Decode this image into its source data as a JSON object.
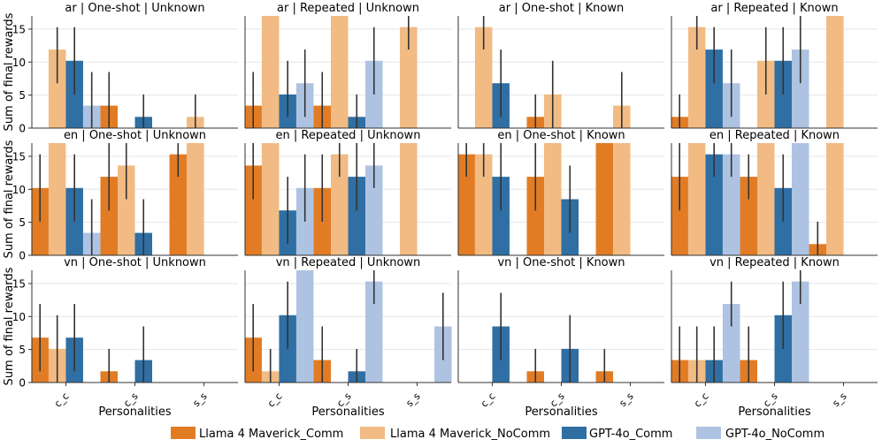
{
  "chart_data": {
    "type": "bar",
    "layout": "facet-grid 3x4",
    "categories": [
      "c_c",
      "c_s",
      "s_s"
    ],
    "xlabel": "Personalities",
    "ylabel": "Sum of final rewards",
    "ylim": [
      0,
      17
    ],
    "yticks": [
      0,
      5,
      10,
      15
    ],
    "grid": true,
    "legend_position": "bottom-center",
    "series_names": [
      "Llama 4 Maverick_Comm",
      "Llama 4 Maverick_NoComm",
      "GPT-4o_Comm",
      "GPT-4o_NoComm"
    ],
    "series_colors": [
      "#e17c25",
      "#f1bb83",
      "#2f6fa3",
      "#aec3e2"
    ],
    "error_bar_color": "#333333",
    "panels": [
      {
        "title": "ar | One-shot | Unknown",
        "series": [
          {
            "name": "Llama 4 Maverick_Comm",
            "values": [
              null,
              3.4,
              null
            ],
            "err_low": [
              null,
              0,
              null
            ],
            "err_high": [
              null,
              8.5,
              null
            ]
          },
          {
            "name": "Llama 4 Maverick_NoComm",
            "values": [
              11.9,
              null,
              1.7
            ],
            "err_low": [
              6.8,
              null,
              0
            ],
            "err_high": [
              15.3,
              null,
              5.1
            ]
          },
          {
            "name": "GPT-4o_Comm",
            "values": [
              10.2,
              1.7,
              null
            ],
            "err_low": [
              5.1,
              0,
              null
            ],
            "err_high": [
              15.3,
              5.1,
              null
            ]
          },
          {
            "name": "GPT-4o_NoComm",
            "values": [
              3.4,
              null,
              null
            ],
            "err_low": [
              0,
              null,
              null
            ],
            "err_high": [
              8.5,
              null,
              null
            ]
          }
        ]
      },
      {
        "title": "ar | Repeated | Unknown",
        "series": [
          {
            "name": "Llama 4 Maverick_Comm",
            "values": [
              3.4,
              3.4,
              null
            ],
            "err_low": [
              0,
              0,
              null
            ],
            "err_high": [
              8.5,
              8.5,
              null
            ]
          },
          {
            "name": "Llama 4 Maverick_NoComm",
            "values": [
              17,
              17,
              15.3
            ],
            "err_low": [
              17,
              17,
              11.9
            ],
            "err_high": [
              17,
              17,
              17
            ]
          },
          {
            "name": "GPT-4o_Comm",
            "values": [
              5.1,
              1.7,
              null
            ],
            "err_low": [
              1.7,
              0,
              null
            ],
            "err_high": [
              10.2,
              5.1,
              null
            ]
          },
          {
            "name": "GPT-4o_NoComm",
            "values": [
              6.8,
              10.2,
              null
            ],
            "err_low": [
              1.7,
              5.1,
              null
            ],
            "err_high": [
              11.9,
              15.3,
              null
            ]
          }
        ]
      },
      {
        "title": "ar | One-shot | Known",
        "series": [
          {
            "name": "Llama 4 Maverick_Comm",
            "values": [
              null,
              1.7,
              null
            ],
            "err_low": [
              null,
              0,
              null
            ],
            "err_high": [
              null,
              5.1,
              null
            ]
          },
          {
            "name": "Llama 4 Maverick_NoComm",
            "values": [
              15.3,
              5.1,
              3.4
            ],
            "err_low": [
              11.9,
              0,
              0
            ],
            "err_high": [
              17,
              10.2,
              8.5
            ]
          },
          {
            "name": "GPT-4o_Comm",
            "values": [
              6.8,
              null,
              null
            ],
            "err_low": [
              1.7,
              null,
              null
            ],
            "err_high": [
              11.9,
              null,
              null
            ]
          },
          {
            "name": "GPT-4o_NoComm",
            "values": [
              null,
              null,
              null
            ],
            "err_low": [
              null,
              null,
              null
            ],
            "err_high": [
              null,
              null,
              null
            ]
          }
        ]
      },
      {
        "title": "ar | Repeated | Known",
        "series": [
          {
            "name": "Llama 4 Maverick_Comm",
            "values": [
              1.7,
              null,
              null
            ],
            "err_low": [
              0,
              null,
              null
            ],
            "err_high": [
              5.1,
              null,
              null
            ]
          },
          {
            "name": "Llama 4 Maverick_NoComm",
            "values": [
              15.3,
              10.2,
              17
            ],
            "err_low": [
              11.9,
              5.1,
              17
            ],
            "err_high": [
              17,
              15.3,
              17
            ]
          },
          {
            "name": "GPT-4o_Comm",
            "values": [
              11.9,
              10.2,
              null
            ],
            "err_low": [
              6.8,
              5.1,
              null
            ],
            "err_high": [
              15.3,
              15.3,
              null
            ]
          },
          {
            "name": "GPT-4o_NoComm",
            "values": [
              6.8,
              11.9,
              null
            ],
            "err_low": [
              1.7,
              6.8,
              null
            ],
            "err_high": [
              11.9,
              17,
              null
            ]
          }
        ]
      },
      {
        "title": "en | One-shot | Unknown",
        "series": [
          {
            "name": "Llama 4 Maverick_Comm",
            "values": [
              10.2,
              11.9,
              15.3
            ],
            "err_low": [
              5.1,
              6.8,
              11.9
            ],
            "err_high": [
              15.3,
              17,
              17
            ]
          },
          {
            "name": "Llama 4 Maverick_NoComm",
            "values": [
              17,
              13.6,
              17
            ],
            "err_low": [
              17,
              8.5,
              17
            ],
            "err_high": [
              17,
              17,
              17
            ]
          },
          {
            "name": "GPT-4o_Comm",
            "values": [
              10.2,
              3.4,
              null
            ],
            "err_low": [
              5.1,
              0,
              null
            ],
            "err_high": [
              15.3,
              8.5,
              null
            ]
          },
          {
            "name": "GPT-4o_NoComm",
            "values": [
              3.4,
              null,
              null
            ],
            "err_low": [
              0,
              null,
              null
            ],
            "err_high": [
              8.5,
              null,
              null
            ]
          }
        ]
      },
      {
        "title": "en | Repeated | Unknown",
        "series": [
          {
            "name": "Llama 4 Maverick_Comm",
            "values": [
              13.6,
              10.2,
              null
            ],
            "err_low": [
              8.5,
              5.1,
              null
            ],
            "err_high": [
              17,
              15.3,
              null
            ]
          },
          {
            "name": "Llama 4 Maverick_NoComm",
            "values": [
              17,
              15.3,
              17
            ],
            "err_low": [
              17,
              11.9,
              17
            ],
            "err_high": [
              17,
              17,
              17
            ]
          },
          {
            "name": "GPT-4o_Comm",
            "values": [
              6.8,
              11.9,
              null
            ],
            "err_low": [
              1.7,
              6.8,
              null
            ],
            "err_high": [
              11.9,
              17,
              null
            ]
          },
          {
            "name": "GPT-4o_NoComm",
            "values": [
              10.2,
              13.6,
              null
            ],
            "err_low": [
              5.1,
              10.2,
              null
            ],
            "err_high": [
              15.3,
              17,
              null
            ]
          }
        ]
      },
      {
        "title": "en | One-shot | Known",
        "series": [
          {
            "name": "Llama 4 Maverick_Comm",
            "values": [
              15.3,
              11.9,
              17
            ],
            "err_low": [
              11.9,
              6.8,
              17
            ],
            "err_high": [
              17,
              17,
              17
            ]
          },
          {
            "name": "Llama 4 Maverick_NoComm",
            "values": [
              15.3,
              17,
              17
            ],
            "err_low": [
              11.9,
              17,
              17
            ],
            "err_high": [
              17,
              17,
              17
            ]
          },
          {
            "name": "GPT-4o_Comm",
            "values": [
              11.9,
              8.5,
              null
            ],
            "err_low": [
              6.8,
              3.4,
              null
            ],
            "err_high": [
              17,
              13.6,
              null
            ]
          },
          {
            "name": "GPT-4o_NoComm",
            "values": [
              null,
              null,
              null
            ],
            "err_low": [
              null,
              null,
              null
            ],
            "err_high": [
              null,
              null,
              null
            ]
          }
        ]
      },
      {
        "title": "en | Repeated | Known",
        "series": [
          {
            "name": "Llama 4 Maverick_Comm",
            "values": [
              11.9,
              11.9,
              1.7
            ],
            "err_low": [
              6.8,
              8.5,
              0
            ],
            "err_high": [
              17,
              15.3,
              5.1
            ]
          },
          {
            "name": "Llama 4 Maverick_NoComm",
            "values": [
              17,
              17,
              17
            ],
            "err_low": [
              17,
              17,
              17
            ],
            "err_high": [
              17,
              17,
              17
            ]
          },
          {
            "name": "GPT-4o_Comm",
            "values": [
              15.3,
              10.2,
              null
            ],
            "err_low": [
              11.9,
              5.1,
              null
            ],
            "err_high": [
              17,
              15.3,
              null
            ]
          },
          {
            "name": "GPT-4o_NoComm",
            "values": [
              15.3,
              17,
              null
            ],
            "err_low": [
              11.9,
              17,
              null
            ],
            "err_high": [
              17,
              17,
              null
            ]
          }
        ]
      },
      {
        "title": "vn | One-shot | Unknown",
        "series": [
          {
            "name": "Llama 4 Maverick_Comm",
            "values": [
              6.8,
              1.7,
              null
            ],
            "err_low": [
              1.7,
              0,
              null
            ],
            "err_high": [
              11.9,
              5.1,
              null
            ]
          },
          {
            "name": "Llama 4 Maverick_NoComm",
            "values": [
              5.1,
              null,
              null
            ],
            "err_low": [
              0,
              null,
              null
            ],
            "err_high": [
              10.2,
              null,
              null
            ]
          },
          {
            "name": "GPT-4o_Comm",
            "values": [
              6.8,
              3.4,
              null
            ],
            "err_low": [
              1.7,
              0,
              null
            ],
            "err_high": [
              11.9,
              8.5,
              null
            ]
          },
          {
            "name": "GPT-4o_NoComm",
            "values": [
              null,
              null,
              null
            ],
            "err_low": [
              null,
              null,
              null
            ],
            "err_high": [
              null,
              null,
              null
            ]
          }
        ]
      },
      {
        "title": "vn | Repeated | Unknown",
        "series": [
          {
            "name": "Llama 4 Maverick_Comm",
            "values": [
              6.8,
              3.4,
              null
            ],
            "err_low": [
              1.7,
              0,
              null
            ],
            "err_high": [
              11.9,
              8.5,
              null
            ]
          },
          {
            "name": "Llama 4 Maverick_NoComm",
            "values": [
              1.7,
              null,
              null
            ],
            "err_low": [
              0,
              null,
              null
            ],
            "err_high": [
              5.1,
              null,
              null
            ]
          },
          {
            "name": "GPT-4o_Comm",
            "values": [
              10.2,
              1.7,
              null
            ],
            "err_low": [
              5.1,
              0,
              null
            ],
            "err_high": [
              15.3,
              5.1,
              null
            ]
          },
          {
            "name": "GPT-4o_NoComm",
            "values": [
              17,
              15.3,
              8.5
            ],
            "err_low": [
              17,
              11.9,
              3.4
            ],
            "err_high": [
              17,
              17,
              13.6
            ]
          }
        ]
      },
      {
        "title": "vn | One-shot | Known",
        "series": [
          {
            "name": "Llama 4 Maverick_Comm",
            "values": [
              null,
              1.7,
              1.7
            ],
            "err_low": [
              null,
              0,
              0
            ],
            "err_high": [
              null,
              5.1,
              5.1
            ]
          },
          {
            "name": "Llama 4 Maverick_NoComm",
            "values": [
              null,
              null,
              null
            ],
            "err_low": [
              null,
              null,
              null
            ],
            "err_high": [
              null,
              null,
              null
            ]
          },
          {
            "name": "GPT-4o_Comm",
            "values": [
              8.5,
              5.1,
              null
            ],
            "err_low": [
              3.4,
              0,
              null
            ],
            "err_high": [
              13.6,
              10.2,
              null
            ]
          },
          {
            "name": "GPT-4o_NoComm",
            "values": [
              null,
              null,
              null
            ],
            "err_low": [
              null,
              null,
              null
            ],
            "err_high": [
              null,
              null,
              null
            ]
          }
        ]
      },
      {
        "title": "vn | Repeated | Known",
        "series": [
          {
            "name": "Llama 4 Maverick_Comm",
            "values": [
              3.4,
              3.4,
              null
            ],
            "err_low": [
              0,
              0,
              null
            ],
            "err_high": [
              8.5,
              8.5,
              null
            ]
          },
          {
            "name": "Llama 4 Maverick_NoComm",
            "values": [
              3.4,
              null,
              null
            ],
            "err_low": [
              0,
              null,
              null
            ],
            "err_high": [
              8.5,
              null,
              null
            ]
          },
          {
            "name": "GPT-4o_Comm",
            "values": [
              3.4,
              10.2,
              null
            ],
            "err_low": [
              0,
              5.1,
              null
            ],
            "err_high": [
              8.5,
              15.3,
              null
            ]
          },
          {
            "name": "GPT-4o_NoComm",
            "values": [
              11.9,
              15.3,
              null
            ],
            "err_low": [
              8.5,
              11.9,
              null
            ],
            "err_high": [
              15.3,
              17,
              null
            ]
          }
        ]
      }
    ]
  }
}
